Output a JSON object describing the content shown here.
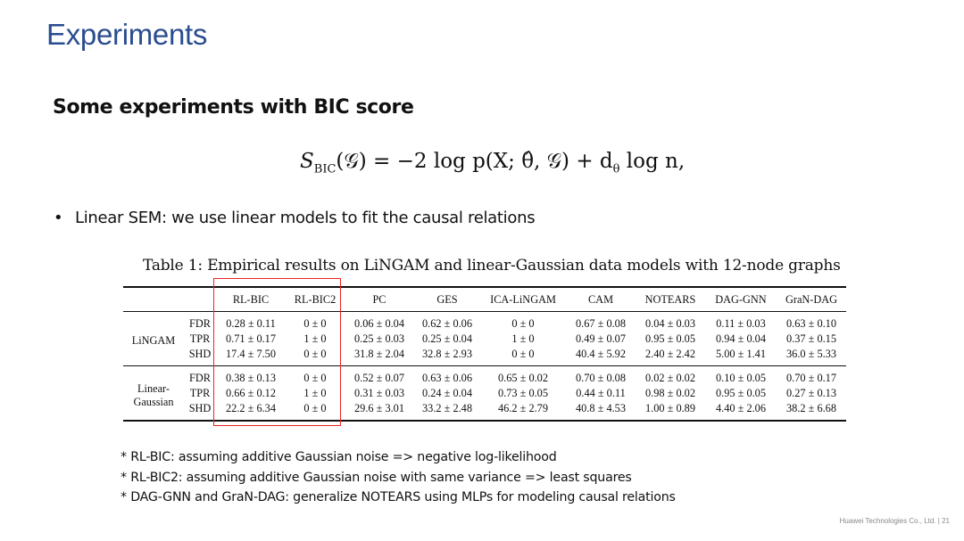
{
  "title": "Experiments",
  "subtitle": "Some experiments with BIC score",
  "formula": {
    "lhs_symbol": "S",
    "lhs_sub": "BIC",
    "lhs_arg": "(𝒢) = ",
    "rhs": "−2 log p(X; θ̂, 𝒢) + d",
    "rhs_sub": "θ",
    "rhs_tail": " log n,"
  },
  "bullet": "Linear SEM: we use linear models to fit the causal relations",
  "table": {
    "caption": "Table 1: Empirical results on LiNGAM and linear-Gaussian data models with 12-node graphs",
    "columns": [
      "RL-BIC",
      "RL-BIC2",
      "PC",
      "GES",
      "ICA-LiNGAM",
      "CAM",
      "NOTEARS",
      "DAG-GNN",
      "GraN-DAG"
    ],
    "groups": [
      {
        "label_line1": "LiNGAM",
        "label_line2": "",
        "rows": [
          {
            "metric": "FDR",
            "values": [
              "0.28 ± 0.11",
              "0 ± 0",
              "0.06 ± 0.04",
              "0.62 ± 0.06",
              "0 ± 0",
              "0.67 ± 0.08",
              "0.04 ± 0.03",
              "0.11 ± 0.03",
              "0.63 ± 0.10"
            ]
          },
          {
            "metric": "TPR",
            "values": [
              "0.71 ± 0.17",
              "1 ± 0",
              "0.25 ± 0.03",
              "0.25 ± 0.04",
              "1 ± 0",
              "0.49 ± 0.07",
              "0.95 ± 0.05",
              "0.94 ± 0.04",
              "0.37 ± 0.15"
            ]
          },
          {
            "metric": "SHD",
            "values": [
              "17.4 ± 7.50",
              "0 ± 0",
              "31.8 ± 2.04",
              "32.8 ± 2.93",
              "0 ± 0",
              "40.4 ± 5.92",
              "2.40 ± 2.42",
              "5.00 ± 1.41",
              "36.0 ± 5.33"
            ]
          }
        ]
      },
      {
        "label_line1": "Linear-",
        "label_line2": "Gaussian",
        "rows": [
          {
            "metric": "FDR",
            "values": [
              "0.38 ± 0.13",
              "0 ± 0",
              "0.52 ± 0.07",
              "0.63 ± 0.06",
              "0.65 ± 0.02",
              "0.70 ± 0.08",
              "0.02 ± 0.02",
              "0.10 ± 0.05",
              "0.70 ± 0.17"
            ]
          },
          {
            "metric": "TPR",
            "values": [
              "0.66 ± 0.12",
              "1 ± 0",
              "0.31 ± 0.03",
              "0.24 ± 0.04",
              "0.73 ± 0.05",
              "0.44 ± 0.11",
              "0.98 ± 0.02",
              "0.95 ± 0.05",
              "0.27 ± 0.13"
            ]
          },
          {
            "metric": "SHD",
            "values": [
              "22.2 ± 6.34",
              "0 ± 0",
              "29.6 ± 3.01",
              "33.2 ± 2.48",
              "46.2 ± 2.79",
              "40.8 ± 4.53",
              "1.00 ± 0.89",
              "4.40 ± 2.06",
              "38.2 ± 6.68"
            ]
          }
        ]
      }
    ]
  },
  "notes": [
    "* RL-BIC: assuming additive Gaussian noise => negative log-likelihood",
    "* RL-BIC2: assuming additive Gaussian noise with same variance => least squares",
    "* DAG-GNN and GraN-DAG: generalize NOTEARS using MLPs for modeling causal relations"
  ],
  "footer": "Huawei Technologies Co., Ltd.  |  21",
  "colors": {
    "title": "#2a4d8f",
    "highlight_box": "#e22222"
  }
}
